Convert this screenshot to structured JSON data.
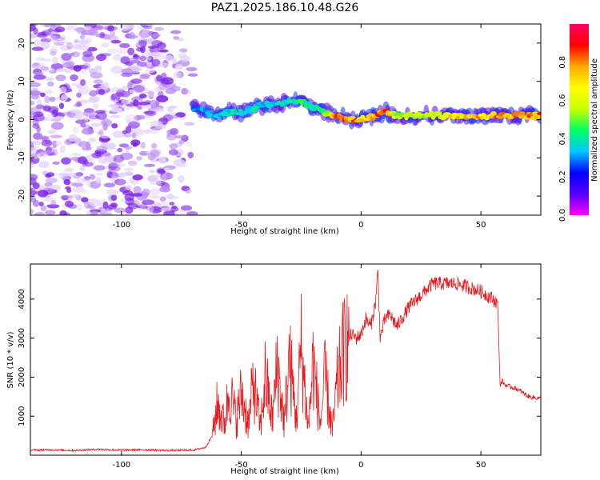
{
  "title": "PAZ1.2025.186.10.48.G26",
  "chart_data": [
    {
      "type": "heatmap",
      "xlabel": "Height of straight line (km)",
      "ylabel": "Frequency (Hz)",
      "xlim": [
        -138,
        75
      ],
      "ylim": [
        -25,
        25
      ],
      "x_ticks": [
        -100,
        -50,
        0,
        50
      ],
      "y_ticks": [
        -20,
        -10,
        0,
        10,
        20
      ],
      "colorbar": {
        "label": "Normalized spectral amplitude",
        "range": [
          0,
          1
        ],
        "ticks": [
          0.0,
          0.2,
          0.4,
          0.6,
          0.8
        ],
        "colormap": [
          "#ff00ff",
          "#5500ff",
          "#0000ff",
          "#00c8ff",
          "#00ff64",
          "#c8ff00",
          "#ffff00",
          "#ffaa00",
          "#ff0000",
          "#ff0066"
        ]
      },
      "ridge": {
        "x": [
          -70,
          -65,
          -60,
          -55,
          -50,
          -45,
          -40,
          -35,
          -30,
          -25,
          -20,
          -15,
          -10,
          -5,
          0,
          5,
          10,
          15,
          20,
          30,
          40,
          50,
          60,
          70,
          75
        ],
        "y": [
          3,
          2,
          1,
          2,
          2,
          3,
          4,
          4,
          5,
          5,
          3,
          2,
          1,
          0,
          0,
          1,
          2,
          1,
          1,
          1,
          1,
          1,
          1,
          1,
          1
        ],
        "amplitude": [
          0.3,
          0.35,
          0.35,
          0.4,
          0.4,
          0.4,
          0.35,
          0.4,
          0.4,
          0.45,
          0.4,
          0.5,
          0.85,
          0.9,
          0.75,
          0.85,
          0.9,
          0.6,
          0.55,
          0.6,
          0.75,
          0.8,
          0.85,
          0.85,
          0.85
        ]
      },
      "noise_region": {
        "x_range": [
          -138,
          -68
        ],
        "y_range": [
          -25,
          25
        ]
      }
    },
    {
      "type": "line",
      "xlabel": "Height of straight line (km)",
      "ylabel": "SNR (10 * v/v)",
      "xlim": [
        -138,
        75
      ],
      "ylim": [
        0,
        4900
      ],
      "x_ticks": [
        -100,
        -50,
        0,
        50
      ],
      "y_ticks": [
        1000,
        2000,
        3000,
        4000
      ],
      "color": "#e8191c",
      "series": [
        {
          "x": [
            -138,
            -130,
            -120,
            -110,
            -100,
            -90,
            -80,
            -70,
            -65,
            -62,
            -60,
            -57,
            -55,
            -52,
            -50,
            -47,
            -45,
            -42,
            -40,
            -37,
            -35,
            -32,
            -30,
            -27,
            -25,
            -22,
            -20,
            -17,
            -15,
            -12,
            -10,
            -8,
            -6,
            -4,
            -2,
            0,
            2,
            4,
            6,
            7,
            8,
            10,
            12,
            15,
            18,
            20,
            25,
            30,
            35,
            40,
            45,
            50,
            55,
            57,
            58,
            59,
            60,
            65,
            70,
            75
          ],
          "y": [
            130,
            140,
            120,
            150,
            130,
            140,
            120,
            130,
            200,
            500,
            1300,
            800,
            1700,
            900,
            1600,
            800,
            1900,
            700,
            2000,
            900,
            2300,
            800,
            2500,
            900,
            2800,
            700,
            2400,
            800,
            2000,
            600,
            1800,
            2500,
            2900,
            3100,
            3000,
            3100,
            3500,
            3300,
            3900,
            4700,
            3000,
            3500,
            3600,
            3300,
            3600,
            3800,
            4100,
            4400,
            4400,
            4400,
            4300,
            4200,
            4000,
            3900,
            1800,
            1900,
            1800,
            1700,
            1500,
            1450
          ]
        }
      ]
    }
  ]
}
